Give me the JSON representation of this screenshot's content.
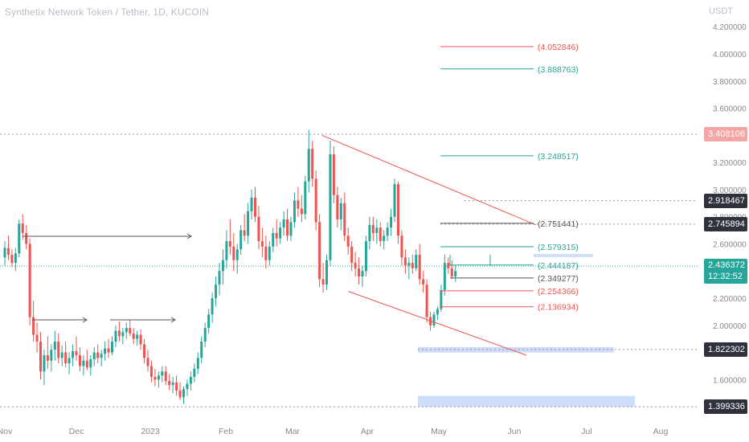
{
  "header": {
    "title": "Synthetix Network Token / Tether, 1D, KUCOIN",
    "unit": "USDT"
  },
  "colors": {
    "up": "#26a69a",
    "down": "#ef5350",
    "channel": "#ef5350",
    "fib_red": "#ef5350",
    "fib_green": "#26a69a",
    "fib_gray": "#555555",
    "zone": "#bcd0f7",
    "axis_text": "#888888"
  },
  "chart_data": {
    "type": "candlestick",
    "ylim": [
      1.33,
      4.29
    ],
    "y_ticks": [
      "4.200000",
      "4.000000",
      "3.800000",
      "3.600000",
      "3.400000",
      "3.200000",
      "3.000000",
      "2.800000",
      "2.600000",
      "2.400000",
      "2.200000",
      "2.000000",
      "1.800000",
      "1.600000"
    ],
    "x_ticks": [
      "Nov",
      "Dec",
      "2023",
      "Feb",
      "Mar",
      "Apr",
      "May",
      "Jun",
      "Jul",
      "Aug"
    ],
    "candles": [
      [
        2.5,
        2.62,
        2.44,
        2.57
      ],
      [
        2.57,
        2.66,
        2.48,
        2.52
      ],
      [
        2.52,
        2.56,
        2.43,
        2.46
      ],
      [
        2.46,
        2.57,
        2.4,
        2.53
      ],
      [
        2.53,
        2.78,
        2.5,
        2.75
      ],
      [
        2.75,
        2.82,
        2.63,
        2.68
      ],
      [
        2.68,
        2.74,
        2.56,
        2.6
      ],
      [
        2.6,
        2.64,
        2.0,
        2.06
      ],
      [
        2.06,
        2.18,
        1.88,
        1.93
      ],
      [
        1.93,
        2.02,
        1.8,
        1.88
      ],
      [
        1.88,
        1.95,
        1.6,
        1.66
      ],
      [
        1.66,
        1.82,
        1.56,
        1.78
      ],
      [
        1.78,
        1.92,
        1.68,
        1.74
      ],
      [
        1.74,
        1.86,
        1.66,
        1.82
      ],
      [
        1.82,
        1.96,
        1.74,
        1.88
      ],
      [
        1.88,
        1.94,
        1.72,
        1.76
      ],
      [
        1.76,
        1.85,
        1.7,
        1.8
      ],
      [
        1.8,
        1.88,
        1.69,
        1.72
      ],
      [
        1.72,
        1.8,
        1.64,
        1.76
      ],
      [
        1.76,
        1.86,
        1.7,
        1.81
      ],
      [
        1.81,
        1.92,
        1.74,
        1.78
      ],
      [
        1.78,
        1.84,
        1.66,
        1.7
      ],
      [
        1.7,
        1.78,
        1.63,
        1.74
      ],
      [
        1.74,
        1.82,
        1.67,
        1.69
      ],
      [
        1.69,
        1.78,
        1.63,
        1.75
      ],
      [
        1.75,
        1.84,
        1.7,
        1.8
      ],
      [
        1.8,
        1.86,
        1.72,
        1.76
      ],
      [
        1.76,
        1.82,
        1.7,
        1.79
      ],
      [
        1.79,
        1.88,
        1.74,
        1.83
      ],
      [
        1.83,
        1.9,
        1.76,
        1.8
      ],
      [
        1.8,
        1.92,
        1.78,
        1.88
      ],
      [
        1.88,
        2.0,
        1.84,
        1.96
      ],
      [
        1.96,
        2.03,
        1.88,
        1.92
      ],
      [
        1.92,
        1.98,
        1.86,
        1.95
      ],
      [
        1.95,
        2.02,
        1.9,
        1.98
      ],
      [
        1.98,
        2.04,
        1.92,
        1.94
      ],
      [
        1.94,
        1.98,
        1.86,
        1.9
      ],
      [
        1.9,
        1.96,
        1.85,
        1.93
      ],
      [
        1.93,
        1.97,
        1.82,
        1.86
      ],
      [
        1.86,
        1.9,
        1.72,
        1.76
      ],
      [
        1.76,
        1.82,
        1.66,
        1.7
      ],
      [
        1.7,
        1.74,
        1.58,
        1.62
      ],
      [
        1.62,
        1.68,
        1.55,
        1.6
      ],
      [
        1.6,
        1.66,
        1.54,
        1.63
      ],
      [
        1.63,
        1.7,
        1.58,
        1.66
      ],
      [
        1.66,
        1.7,
        1.56,
        1.59
      ],
      [
        1.59,
        1.64,
        1.52,
        1.56
      ],
      [
        1.56,
        1.62,
        1.5,
        1.58
      ],
      [
        1.58,
        1.63,
        1.48,
        1.52
      ],
      [
        1.52,
        1.58,
        1.45,
        1.47
      ],
      [
        1.47,
        1.55,
        1.42,
        1.53
      ],
      [
        1.53,
        1.6,
        1.48,
        1.57
      ],
      [
        1.57,
        1.66,
        1.52,
        1.62
      ],
      [
        1.62,
        1.72,
        1.58,
        1.68
      ],
      [
        1.68,
        1.8,
        1.64,
        1.76
      ],
      [
        1.76,
        1.92,
        1.72,
        1.88
      ],
      [
        1.88,
        2.02,
        1.84,
        1.98
      ],
      [
        1.98,
        2.12,
        1.94,
        2.08
      ],
      [
        2.08,
        2.24,
        2.02,
        2.2
      ],
      [
        2.2,
        2.36,
        2.14,
        2.3
      ],
      [
        2.3,
        2.46,
        2.22,
        2.4
      ],
      [
        2.4,
        2.56,
        2.3,
        2.48
      ],
      [
        2.48,
        2.7,
        2.42,
        2.62
      ],
      [
        2.62,
        2.78,
        2.52,
        2.58
      ],
      [
        2.58,
        2.68,
        2.4,
        2.48
      ],
      [
        2.48,
        2.6,
        2.38,
        2.56
      ],
      [
        2.56,
        2.74,
        2.52,
        2.7
      ],
      [
        2.7,
        2.82,
        2.62,
        2.66
      ],
      [
        2.66,
        2.9,
        2.6,
        2.84
      ],
      [
        2.84,
        3.0,
        2.78,
        2.94
      ],
      [
        2.94,
        3.02,
        2.76,
        2.8
      ],
      [
        2.8,
        2.88,
        2.56,
        2.62
      ],
      [
        2.62,
        2.72,
        2.5,
        2.58
      ],
      [
        2.58,
        2.66,
        2.42,
        2.48
      ],
      [
        2.48,
        2.62,
        2.44,
        2.58
      ],
      [
        2.58,
        2.72,
        2.54,
        2.68
      ],
      [
        2.68,
        2.78,
        2.58,
        2.64
      ],
      [
        2.64,
        2.76,
        2.6,
        2.72
      ],
      [
        2.72,
        2.84,
        2.66,
        2.78
      ],
      [
        2.78,
        2.86,
        2.62,
        2.66
      ],
      [
        2.66,
        2.8,
        2.62,
        2.76
      ],
      [
        2.76,
        2.98,
        2.72,
        2.92
      ],
      [
        2.92,
        3.02,
        2.8,
        2.86
      ],
      [
        2.86,
        2.96,
        2.76,
        2.82
      ],
      [
        2.82,
        3.1,
        2.78,
        3.06
      ],
      [
        3.06,
        3.44,
        2.98,
        3.3
      ],
      [
        3.3,
        3.36,
        3.02,
        3.08
      ],
      [
        3.08,
        3.14,
        2.7,
        2.76
      ],
      [
        2.76,
        2.82,
        2.28,
        2.34
      ],
      [
        2.34,
        2.46,
        2.24,
        2.3
      ],
      [
        2.3,
        2.52,
        2.26,
        2.48
      ],
      [
        2.48,
        3.36,
        2.44,
        3.26
      ],
      [
        3.26,
        3.32,
        2.9,
        2.96
      ],
      [
        2.96,
        3.02,
        2.72,
        2.78
      ],
      [
        2.78,
        2.94,
        2.7,
        2.9
      ],
      [
        2.9,
        2.98,
        2.62,
        2.66
      ],
      [
        2.66,
        2.72,
        2.52,
        2.58
      ],
      [
        2.58,
        2.62,
        2.4,
        2.46
      ],
      [
        2.46,
        2.54,
        2.36,
        2.42
      ],
      [
        2.42,
        2.5,
        2.3,
        2.36
      ],
      [
        2.36,
        2.44,
        2.28,
        2.4
      ],
      [
        2.4,
        2.66,
        2.36,
        2.62
      ],
      [
        2.62,
        2.8,
        2.56,
        2.74
      ],
      [
        2.74,
        2.8,
        2.62,
        2.68
      ],
      [
        2.68,
        2.78,
        2.6,
        2.72
      ],
      [
        2.72,
        2.76,
        2.58,
        2.62
      ],
      [
        2.62,
        2.7,
        2.56,
        2.66
      ],
      [
        2.66,
        2.76,
        2.62,
        2.72
      ],
      [
        2.72,
        2.86,
        2.66,
        2.8
      ],
      [
        2.8,
        3.08,
        2.76,
        3.04
      ],
      [
        3.04,
        3.06,
        2.6,
        2.66
      ],
      [
        2.66,
        2.7,
        2.44,
        2.5
      ],
      [
        2.5,
        2.56,
        2.38,
        2.44
      ],
      [
        2.44,
        2.5,
        2.34,
        2.46
      ],
      [
        2.46,
        2.52,
        2.38,
        2.42
      ],
      [
        2.42,
        2.56,
        2.4,
        2.52
      ],
      [
        2.52,
        2.6,
        2.3,
        2.34
      ],
      [
        2.34,
        2.4,
        2.24,
        2.3
      ],
      [
        2.3,
        2.34,
        2.02,
        2.06
      ],
      [
        2.06,
        2.1,
        1.96,
        2.0
      ],
      [
        2.0,
        2.1,
        1.98,
        2.08
      ],
      [
        2.08,
        2.14,
        2.04,
        2.12
      ],
      [
        2.12,
        2.3,
        2.1,
        2.26
      ],
      [
        2.26,
        2.52,
        2.22,
        2.46
      ],
      [
        2.46,
        2.5,
        2.38,
        2.42
      ],
      [
        2.42,
        2.48,
        2.34,
        2.36
      ],
      [
        2.36,
        2.44,
        2.32,
        2.4
      ]
    ],
    "channel": {
      "upper": [
        [
          "2023-03-13",
          3.4
        ],
        [
          "2023-06-10",
          2.74
        ]
      ],
      "lower": [
        [
          "2023-03-24",
          2.25
        ],
        [
          "2023-06-06",
          1.78
        ]
      ]
    },
    "fib_levels": [
      {
        "label": "(4.052846)",
        "value": 4.052846,
        "color": "red"
      },
      {
        "label": "(3.888763)",
        "value": 3.888763,
        "color": "green"
      },
      {
        "label": "(3.248517)",
        "value": 3.248517,
        "color": "green"
      },
      {
        "label": "(2.751441)",
        "value": 2.751441,
        "color": "gray"
      },
      {
        "label": "(2.579315)",
        "value": 2.579315,
        "color": "green"
      },
      {
        "label": "(2.444187)",
        "value": 2.444187,
        "color": "green"
      },
      {
        "label": "(2.349277)",
        "value": 2.349277,
        "color": "gray"
      },
      {
        "label": "(2.254366)",
        "value": 2.254366,
        "color": "red"
      },
      {
        "label": "(2.136934)",
        "value": 2.136934,
        "color": "red"
      }
    ],
    "price_tags": [
      {
        "label": "3.408106",
        "value": 3.408106,
        "bg": "#f2a6a6"
      },
      {
        "label": "2.918467",
        "value": 2.918467,
        "bg": "#2f323c"
      },
      {
        "label": "2.745894",
        "value": 2.745894,
        "bg": "#2f323c"
      },
      {
        "label": "2.436372",
        "value": 2.436372,
        "bg": "#26a69a",
        "sub": "12:32:52"
      },
      {
        "label": "1.822302",
        "value": 1.822302,
        "bg": "#2f323c"
      },
      {
        "label": "1.399336",
        "value": 1.399336,
        "bg": "#2f323c"
      }
    ],
    "zones": [
      {
        "y1": 1.8,
        "y2": 1.84
      },
      {
        "y1": 1.4,
        "y2": 1.48
      }
    ]
  }
}
